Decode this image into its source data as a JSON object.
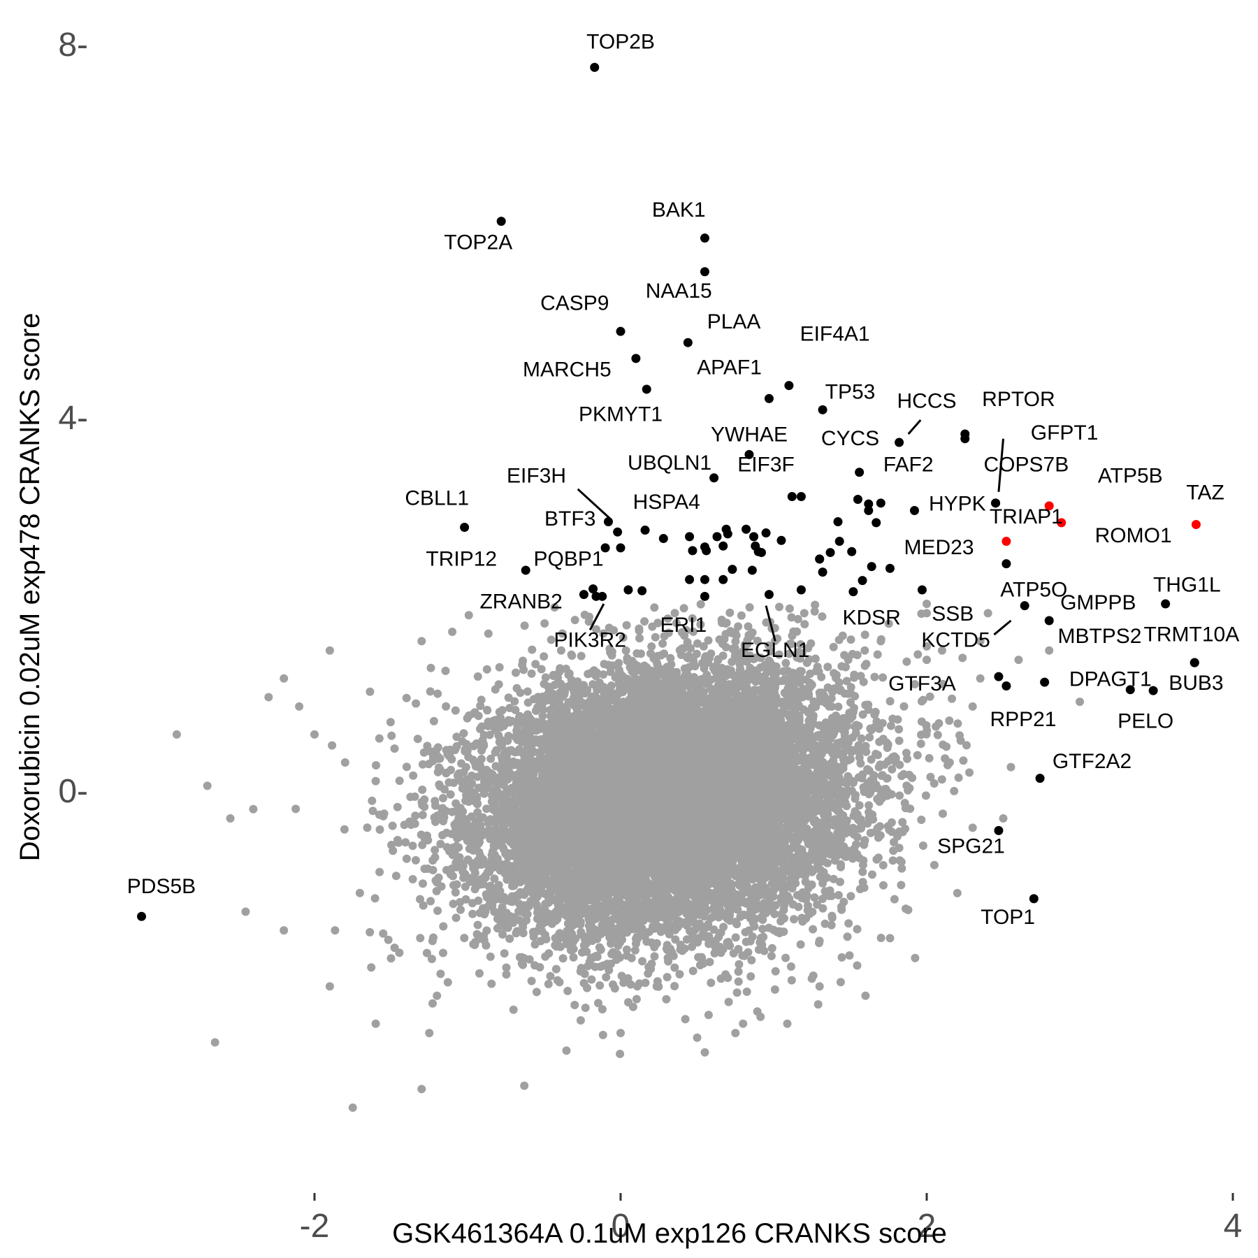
{
  "chart_data": {
    "type": "scatter",
    "xlabel": "GSK461364A 0.1uM exp126 CRANKS score",
    "ylabel": "Doxorubicin 0.02uM exp478 CRANKS score",
    "xlim": [
      -4.1,
      4.0
    ],
    "ylim": [
      -4.0,
      8.4
    ],
    "x_ticks": [
      -2,
      0,
      2,
      4
    ],
    "x_tick_labels": [
      "-2",
      "0",
      "2",
      "4"
    ],
    "y_ticks": [
      0,
      4,
      8
    ],
    "y_tick_labels": [
      "0-",
      "4-",
      "8-"
    ],
    "grid": false,
    "legend": "none",
    "colors": {
      "background": "#ffffff",
      "background_points": "#a0a0a0",
      "highlight": "#000000",
      "hit": "#ff0000"
    },
    "background_cloud": {
      "note_description": "dense cloud of non-labeled genes",
      "center": [
        0.3,
        -0.1
      ],
      "sd": [
        0.6,
        0.7
      ],
      "correlation": 0.15,
      "approx_count": 12000,
      "color": "#a0a0a0"
    },
    "background_outliers": [
      [
        -2.9,
        0.6
      ],
      [
        -2.7,
        0.05
      ],
      [
        -2.65,
        -2.7
      ],
      [
        -2.55,
        -0.3
      ],
      [
        -2.4,
        -0.2
      ],
      [
        -2.2,
        1.2
      ],
      [
        -2.1,
        0.9
      ],
      [
        -1.9,
        1.5
      ],
      [
        -1.8,
        0.3
      ],
      [
        -1.75,
        -3.4
      ],
      [
        -1.6,
        -2.5
      ],
      [
        -1.5,
        -1.8
      ],
      [
        -1.3,
        -3.2
      ],
      [
        -1.25,
        -2.6
      ],
      [
        -0.7,
        -2.35
      ],
      [
        -0.3,
        -2.3
      ],
      [
        0.0,
        -2.6
      ],
      [
        0.5,
        -2.65
      ],
      [
        0.75,
        -2.6
      ],
      [
        0.8,
        -2.5
      ],
      [
        1.6,
        -2.2
      ],
      [
        2.2,
        -1.1
      ],
      [
        2.5,
        -0.3
      ],
      [
        2.55,
        0.25
      ],
      [
        2.3,
        0.9
      ],
      [
        2.1,
        1.5
      ],
      [
        2.0,
        1.9
      ],
      [
        2.35,
        1.6
      ],
      [
        2.4,
        1.9
      ],
      [
        2.0,
        2.0
      ],
      [
        2.35,
        1.2
      ],
      [
        2.6,
        1.4
      ],
      [
        3.0,
        0.95
      ],
      [
        2.8,
        1.5
      ],
      [
        2.0,
        1.4
      ],
      [
        1.7,
        1.6
      ],
      [
        1.2,
        1.9
      ],
      [
        -1.1,
        1.7
      ],
      [
        -1.3,
        1.6
      ],
      [
        -2.3,
        1.0
      ],
      [
        -2.0,
        0.6
      ],
      [
        -1.6,
        0.1
      ],
      [
        2.15,
        0.3
      ],
      [
        2.3,
        -0.4
      ],
      [
        2.05,
        -0.8
      ],
      [
        -2.45,
        -1.3
      ],
      [
        -2.2,
        -1.5
      ],
      [
        -1.9,
        -2.1
      ],
      [
        -1.2,
        -2.2
      ],
      [
        1.3,
        -2.1
      ]
    ],
    "labeled_points": [
      {
        "label": "TOP2B",
        "x": -0.17,
        "y": 7.75,
        "color": "#000000",
        "lx": 0.0,
        "ly": 7.95
      },
      {
        "label": "TOP2A",
        "x": -0.78,
        "y": 6.1,
        "color": "#000000",
        "lx": -0.93,
        "ly": 5.8
      },
      {
        "label": "BAK1",
        "x": 0.55,
        "y": 5.92,
        "color": "#000000",
        "lx": 0.38,
        "ly": 6.15
      },
      {
        "label": "NAA15",
        "x": 0.55,
        "y": 5.56,
        "color": "#000000",
        "lx": 0.38,
        "ly": 5.28
      },
      {
        "label": "CASP9",
        "x": 0.0,
        "y": 4.92,
        "color": "#000000",
        "lx": -0.3,
        "ly": 5.15
      },
      {
        "label": "PLAA",
        "x": 0.44,
        "y": 4.8,
        "color": "#000000",
        "lx": 0.74,
        "ly": 4.95
      },
      {
        "label": "EIF4A1",
        "x": 1.1,
        "y": 4.34,
        "color": "#000000",
        "lx": 1.4,
        "ly": 4.82
      },
      {
        "label": "MARCH5",
        "x": 0.1,
        "y": 4.63,
        "color": "#000000",
        "lx": -0.35,
        "ly": 4.44
      },
      {
        "label": "APAF1",
        "x": 0.97,
        "y": 4.2,
        "color": "#000000",
        "lx": 0.71,
        "ly": 4.46
      },
      {
        "label": "TP53",
        "x": 1.32,
        "y": 4.08,
        "color": "#000000",
        "lx": 1.5,
        "ly": 4.2
      },
      {
        "label": "PKMYT1",
        "x": 0.17,
        "y": 4.3,
        "color": "#000000",
        "lx": 0.0,
        "ly": 3.96
      },
      {
        "label": "HCCS",
        "x": 1.82,
        "y": 3.73,
        "color": "#000000",
        "lx": 2.0,
        "ly": 4.1,
        "leader": [
          [
            1.88,
            3.82
          ],
          [
            1.96,
            3.97
          ]
        ]
      },
      {
        "label": "RPTOR",
        "x": 2.25,
        "y": 3.82,
        "color": "#000000",
        "lx": 2.6,
        "ly": 4.12
      },
      {
        "label": "CYCS",
        "x": 2.25,
        "y": 3.77,
        "color": "#000000",
        "lx": 1.5,
        "ly": 3.7
      },
      {
        "label": "GFPT1",
        "x": 2.45,
        "y": 3.08,
        "color": "#000000",
        "lx": 2.9,
        "ly": 3.76,
        "leader": [
          [
            2.47,
            3.2
          ],
          [
            2.5,
            3.77
          ]
        ]
      },
      {
        "label": "YWHAE",
        "x": 0.84,
        "y": 3.6,
        "color": "#000000",
        "lx": 0.84,
        "ly": 3.74
      },
      {
        "label": "UBQLN1",
        "x": 0.61,
        "y": 3.35,
        "color": "#000000",
        "lx": 0.32,
        "ly": 3.44
      },
      {
        "label": "EIF3F",
        "x": 1.12,
        "y": 3.15,
        "color": "#000000",
        "lx": 0.95,
        "ly": 3.42
      },
      {
        "label": "FAF2",
        "x": 1.56,
        "y": 3.41,
        "color": "#000000",
        "lx": 1.88,
        "ly": 3.42
      },
      {
        "label": "COPS7B",
        "x": 2.45,
        "y": 3.08,
        "color": "#000000",
        "lx": 2.65,
        "ly": 3.42
      },
      {
        "label": "ATP5B",
        "x": 2.8,
        "y": 3.05,
        "color": "#ff0000",
        "lx": 3.33,
        "ly": 3.3
      },
      {
        "label": "TAZ",
        "x": 3.76,
        "y": 2.85,
        "color": "#ff0000",
        "lx": 3.82,
        "ly": 3.12
      },
      {
        "label": "EIF3H",
        "x": -0.08,
        "y": 2.88,
        "color": "#000000",
        "lx": -0.55,
        "ly": 3.3,
        "leader": [
          [
            -0.28,
            3.23
          ],
          [
            -0.06,
            2.9
          ]
        ]
      },
      {
        "label": "CBLL1",
        "x": -1.02,
        "y": 2.82,
        "color": "#000000",
        "lx": -1.2,
        "ly": 3.06
      },
      {
        "label": "HSPA4",
        "x": 0.16,
        "y": 2.79,
        "color": "#000000",
        "lx": 0.3,
        "ly": 3.02
      },
      {
        "label": "BTF3",
        "x": -0.02,
        "y": 2.77,
        "color": "#000000",
        "lx": -0.33,
        "ly": 2.84
      },
      {
        "label": "HYPK",
        "x": 1.92,
        "y": 3.0,
        "color": "#000000",
        "lx": 2.2,
        "ly": 3.0
      },
      {
        "label": "TRIAP1",
        "x": 2.52,
        "y": 2.67,
        "color": "#ff0000",
        "lx": 2.65,
        "ly": 2.86
      },
      {
        "label": "ROMO1",
        "x": 2.88,
        "y": 2.87,
        "color": "#ff0000",
        "lx": 3.35,
        "ly": 2.66
      },
      {
        "label": "ATP5O",
        "x": 2.52,
        "y": 2.43,
        "color": "#000000",
        "lx": 2.7,
        "ly": 2.08
      },
      {
        "label": "TRIP12",
        "x": -0.62,
        "y": 2.36,
        "color": "#000000",
        "lx": -1.04,
        "ly": 2.41
      },
      {
        "label": "PQBP1",
        "x": -0.24,
        "y": 2.1,
        "color": "#000000",
        "lx": -0.34,
        "ly": 2.41
      },
      {
        "label": "MED23",
        "x": 1.76,
        "y": 2.38,
        "color": "#000000",
        "lx": 2.08,
        "ly": 2.53
      },
      {
        "label": "THG1L",
        "x": 3.56,
        "y": 2.0,
        "color": "#000000",
        "lx": 3.7,
        "ly": 2.13
      },
      {
        "label": "ZRANB2",
        "x": -0.16,
        "y": 2.08,
        "color": "#000000",
        "lx": -0.65,
        "ly": 1.95
      },
      {
        "label": "GMPPB",
        "x": 2.64,
        "y": 1.98,
        "color": "#000000",
        "lx": 3.12,
        "ly": 1.94
      },
      {
        "label": "SSB",
        "x": 1.97,
        "y": 2.15,
        "color": "#000000",
        "lx": 2.17,
        "ly": 1.82
      },
      {
        "label": "KDSR",
        "x": 1.52,
        "y": 2.13,
        "color": "#000000",
        "lx": 1.64,
        "ly": 1.78
      },
      {
        "label": "ERI1",
        "x": 0.55,
        "y": 2.08,
        "color": "#000000",
        "lx": 0.41,
        "ly": 1.7
      },
      {
        "label": "PIK3R2",
        "x": -0.12,
        "y": 2.08,
        "color": "#000000",
        "lx": -0.2,
        "ly": 1.54,
        "leader": [
          [
            -0.2,
            1.72
          ],
          [
            -0.11,
            2.0
          ]
        ]
      },
      {
        "label": "EGLN1",
        "x": 0.97,
        "y": 2.1,
        "color": "#000000",
        "lx": 1.01,
        "ly": 1.43,
        "leader": [
          [
            1.01,
            1.6
          ],
          [
            0.95,
            1.98
          ]
        ]
      },
      {
        "label": "KCTD5",
        "x": 2.52,
        "y": 1.12,
        "color": "#000000",
        "lx": 2.19,
        "ly": 1.54,
        "leader": [
          [
            2.44,
            1.67
          ],
          [
            2.55,
            1.82
          ]
        ]
      },
      {
        "label": "MBTPS2",
        "x": 2.8,
        "y": 1.82,
        "color": "#000000",
        "lx": 3.13,
        "ly": 1.58
      },
      {
        "label": "TRMT10A",
        "x": 3.75,
        "y": 1.37,
        "color": "#000000",
        "lx": 3.73,
        "ly": 1.6
      },
      {
        "label": "BUB3",
        "x": 3.75,
        "y": 1.37,
        "color": "#000000",
        "lx": 3.76,
        "ly": 1.08
      },
      {
        "label": "DPAGT1",
        "x": 3.33,
        "y": 1.08,
        "color": "#000000",
        "lx": 3.2,
        "ly": 1.12
      },
      {
        "label": "GTF3A",
        "x": 2.47,
        "y": 1.22,
        "color": "#000000",
        "lx": 1.97,
        "ly": 1.07
      },
      {
        "label": "RPP21",
        "x": 2.77,
        "y": 1.16,
        "color": "#000000",
        "lx": 2.63,
        "ly": 0.69
      },
      {
        "label": "PELO",
        "x": 3.48,
        "y": 1.07,
        "color": "#000000",
        "lx": 3.43,
        "ly": 0.67
      },
      {
        "label": "GTF2A2",
        "x": 2.74,
        "y": 0.13,
        "color": "#000000",
        "lx": 3.08,
        "ly": 0.24
      },
      {
        "label": "SPG21",
        "x": 2.47,
        "y": -0.43,
        "color": "#000000",
        "lx": 2.29,
        "ly": -0.67
      },
      {
        "label": "TOP1",
        "x": 2.7,
        "y": -1.16,
        "color": "#000000",
        "lx": 2.53,
        "ly": -1.43
      },
      {
        "label": "PDS5B",
        "x": -3.13,
        "y": -1.35,
        "color": "#000000",
        "lx": -3.0,
        "ly": -1.1
      }
    ],
    "extra_points": [
      [
        -0.1,
        2.6
      ],
      [
        0.0,
        2.6
      ],
      [
        0.28,
        2.7
      ],
      [
        0.47,
        2.57
      ],
      [
        0.67,
        2.62
      ],
      [
        0.7,
        2.75
      ],
      [
        0.87,
        2.72
      ],
      [
        0.88,
        2.62
      ],
      [
        0.92,
        2.55
      ],
      [
        0.95,
        2.76
      ],
      [
        1.05,
        2.68
      ],
      [
        1.18,
        3.15
      ],
      [
        1.37,
        2.55
      ],
      [
        1.43,
        2.67
      ],
      [
        1.51,
        2.56
      ],
      [
        1.55,
        3.12
      ],
      [
        1.62,
        3.07
      ],
      [
        1.67,
        2.87
      ],
      [
        1.7,
        3.08
      ],
      [
        1.62,
        3.0
      ],
      [
        1.3,
        2.48
      ],
      [
        1.32,
        2.34
      ],
      [
        1.64,
        2.4
      ],
      [
        1.58,
        2.25
      ],
      [
        0.45,
        2.26
      ],
      [
        0.55,
        2.26
      ],
      [
        0.67,
        2.26
      ],
      [
        0.73,
        2.37
      ],
      [
        0.86,
        2.36
      ],
      [
        0.9,
        2.56
      ],
      [
        0.45,
        2.72
      ],
      [
        0.55,
        2.61
      ],
      [
        0.63,
        2.72
      ],
      [
        0.69,
        2.8
      ],
      [
        1.18,
        2.15
      ],
      [
        1.3,
        2.48
      ],
      [
        1.42,
        2.88
      ],
      [
        0.82,
        2.8
      ],
      [
        0.05,
        2.15
      ],
      [
        0.14,
        2.14
      ],
      [
        -0.18,
        2.16
      ],
      [
        0.56,
        2.57
      ]
    ]
  }
}
